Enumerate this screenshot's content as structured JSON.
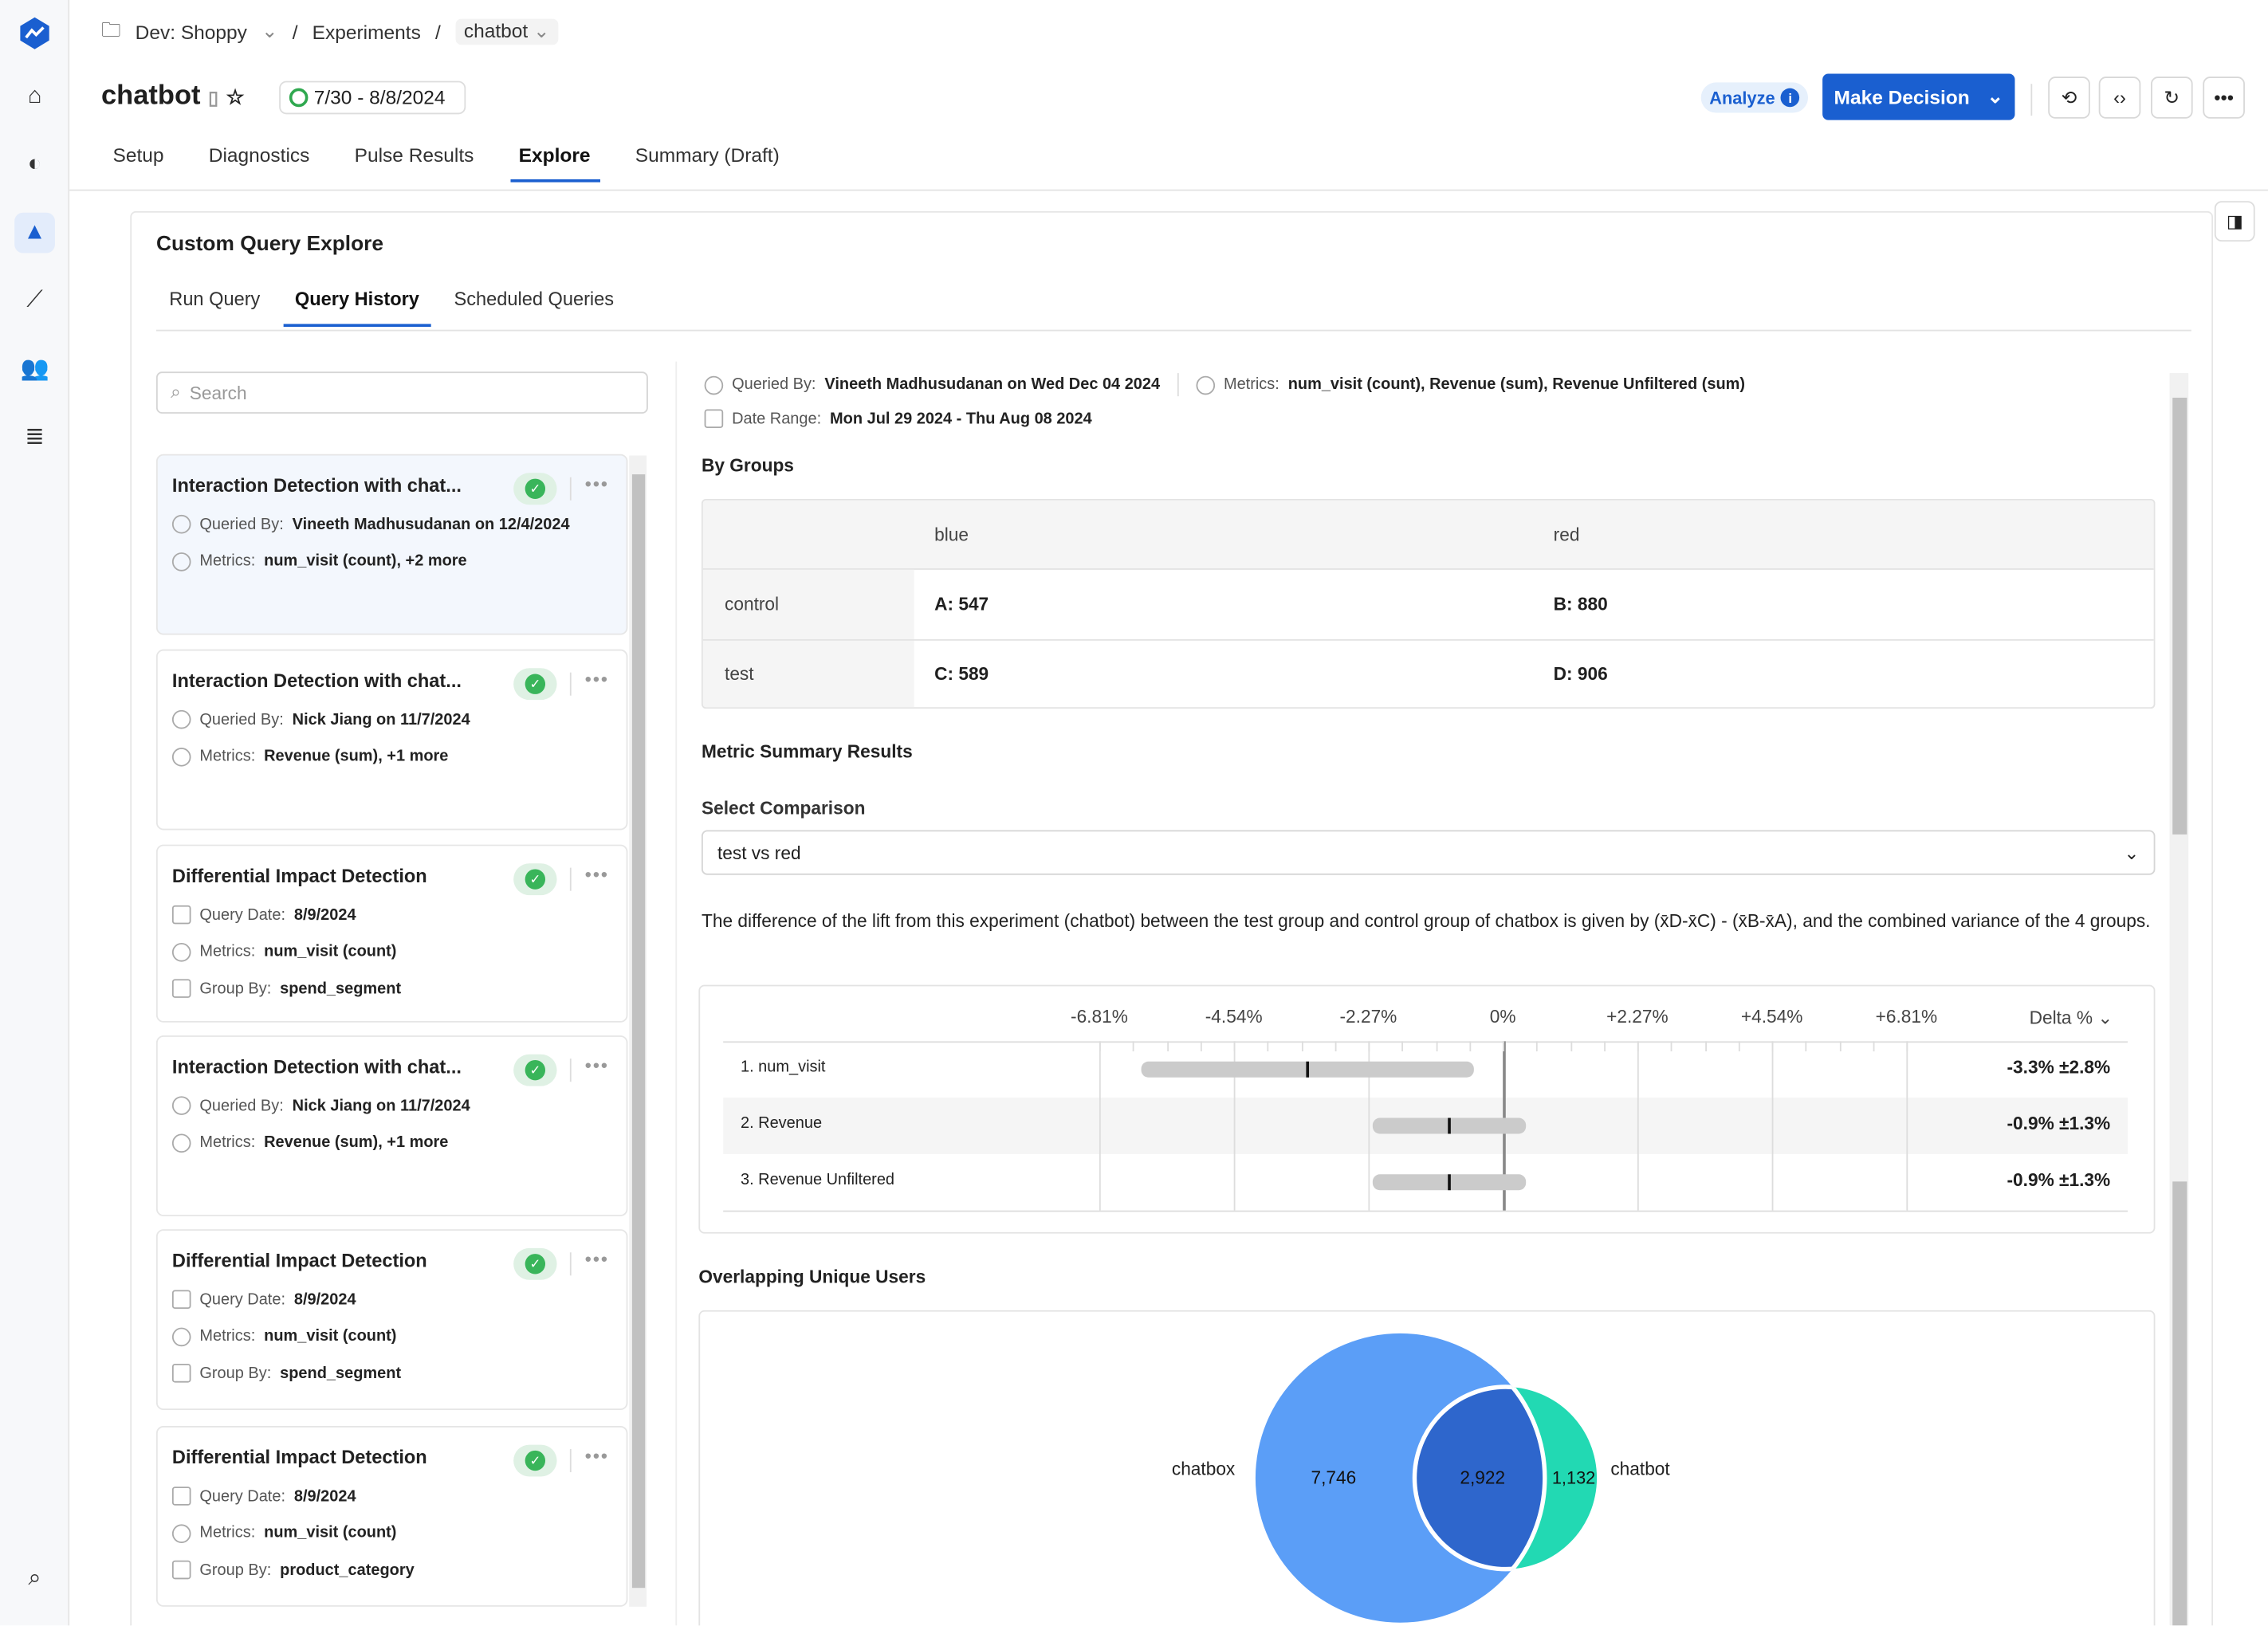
{
  "breadcrumb": {
    "workspace": "Dev: Shoppy",
    "section": "Experiments",
    "experiment": "chatbot"
  },
  "header": {
    "title": "chatbot",
    "date_range": "7/30 - 8/8/2024",
    "analyze_label": "Analyze",
    "make_decision_label": "Make Decision"
  },
  "tabs": [
    {
      "label": "Setup"
    },
    {
      "label": "Diagnostics"
    },
    {
      "label": "Pulse Results"
    },
    {
      "label": "Explore",
      "active": true
    },
    {
      "label": "Summary (Draft)"
    }
  ],
  "explore": {
    "title": "Custom Query Explore",
    "subtabs": [
      {
        "label": "Run Query"
      },
      {
        "label": "Query History",
        "active": true
      },
      {
        "label": "Scheduled Queries"
      }
    ],
    "search_placeholder": "Search"
  },
  "history": [
    {
      "title": "Interaction Detection with chat...",
      "selected": true,
      "lines": [
        {
          "icon": "user-icon",
          "label": "Queried By:",
          "value": "Vineeth Madhusudanan on 12/4/2024"
        },
        {
          "icon": "gauge-icon",
          "label": "Metrics:",
          "value": "num_visit (count), +2 more"
        }
      ]
    },
    {
      "title": "Interaction Detection with chat...",
      "lines": [
        {
          "icon": "user-icon",
          "label": "Queried By:",
          "value": "Nick Jiang on 11/7/2024"
        },
        {
          "icon": "gauge-icon",
          "label": "Metrics:",
          "value": "Revenue (sum), +1 more"
        }
      ]
    },
    {
      "title": "Differential Impact Detection",
      "lines": [
        {
          "icon": "calendar-icon",
          "label": "Query Date:",
          "value": "8/9/2024"
        },
        {
          "icon": "gauge-icon",
          "label": "Metrics:",
          "value": "num_visit (count)"
        },
        {
          "icon": "folder-icon",
          "label": "Group By:",
          "value": "spend_segment"
        }
      ]
    },
    {
      "title": "Interaction Detection with chat...",
      "lines": [
        {
          "icon": "user-icon",
          "label": "Queried By:",
          "value": "Nick Jiang on 11/7/2024"
        },
        {
          "icon": "gauge-icon",
          "label": "Metrics:",
          "value": "Revenue (sum), +1 more"
        }
      ]
    },
    {
      "title": "Differential Impact Detection",
      "lines": [
        {
          "icon": "calendar-icon",
          "label": "Query Date:",
          "value": "8/9/2024"
        },
        {
          "icon": "gauge-icon",
          "label": "Metrics:",
          "value": "num_visit (count)"
        },
        {
          "icon": "folder-icon",
          "label": "Group By:",
          "value": "spend_segment"
        }
      ]
    },
    {
      "title": "Differential Impact Detection",
      "lines": [
        {
          "icon": "calendar-icon",
          "label": "Query Date:",
          "value": "8/9/2024"
        },
        {
          "icon": "gauge-icon",
          "label": "Metrics:",
          "value": "num_visit (count)"
        },
        {
          "icon": "folder-icon",
          "label": "Group By:",
          "value": "product_category"
        }
      ]
    }
  ],
  "detail": {
    "queried_by_label": "Queried By:",
    "queried_by": "Vineeth Madhusudanan on Wed Dec 04 2024",
    "metrics_label": "Metrics:",
    "metrics": "num_visit (count), Revenue (sum), Revenue Unfiltered (sum)",
    "date_range_label": "Date Range:",
    "date_range": "Mon Jul 29 2024 - Thu Aug 08 2024",
    "by_groups_title": "By Groups",
    "groups": {
      "columns": [
        "blue",
        "red"
      ],
      "rows": [
        {
          "label": "control",
          "cells": [
            "A: 547",
            "B: 880"
          ]
        },
        {
          "label": "test",
          "cells": [
            "C: 589",
            "D: 906"
          ]
        }
      ]
    },
    "metric_summary_title": "Metric Summary Results",
    "select_comparison_label": "Select Comparison",
    "comparison": "test vs red",
    "description_pre": "The difference of the lift from this experiment (chatbot) between the test group and control group of chatbox is given by ",
    "formula": "(x̄D-x̄C) - (x̄B-x̄A)",
    "description_post": ", and the combined variance of the 4 groups.",
    "delta_header": "Delta %",
    "overlap_title": "Overlapping Unique Users"
  },
  "chart_data": [
    {
      "type": "forest",
      "ticks": [
        "-6.81%",
        "-4.54%",
        "-2.27%",
        "0%",
        "+2.27%",
        "+4.54%",
        "+6.81%"
      ],
      "xlim": [
        -9.08,
        9.08
      ],
      "metrics": [
        {
          "name": "1. num_visit",
          "delta": -3.3,
          "ci": 2.8,
          "label": "-3.3% ±2.8%"
        },
        {
          "name": "2. Revenue",
          "delta": -0.9,
          "ci": 1.3,
          "label": "-0.9% ±1.3%"
        },
        {
          "name": "3. Revenue Unfiltered",
          "delta": -0.9,
          "ci": 1.3,
          "label": "-0.9% ±1.3%"
        }
      ]
    },
    {
      "type": "venn",
      "sets": [
        {
          "name": "chatbox",
          "only": "7,746",
          "color": "#5b9ef7"
        },
        {
          "name": "chatbot",
          "only": "1,132",
          "color": "#22d9b3"
        }
      ],
      "intersection": "2,922",
      "intersection_color": "#2e66cc"
    }
  ]
}
